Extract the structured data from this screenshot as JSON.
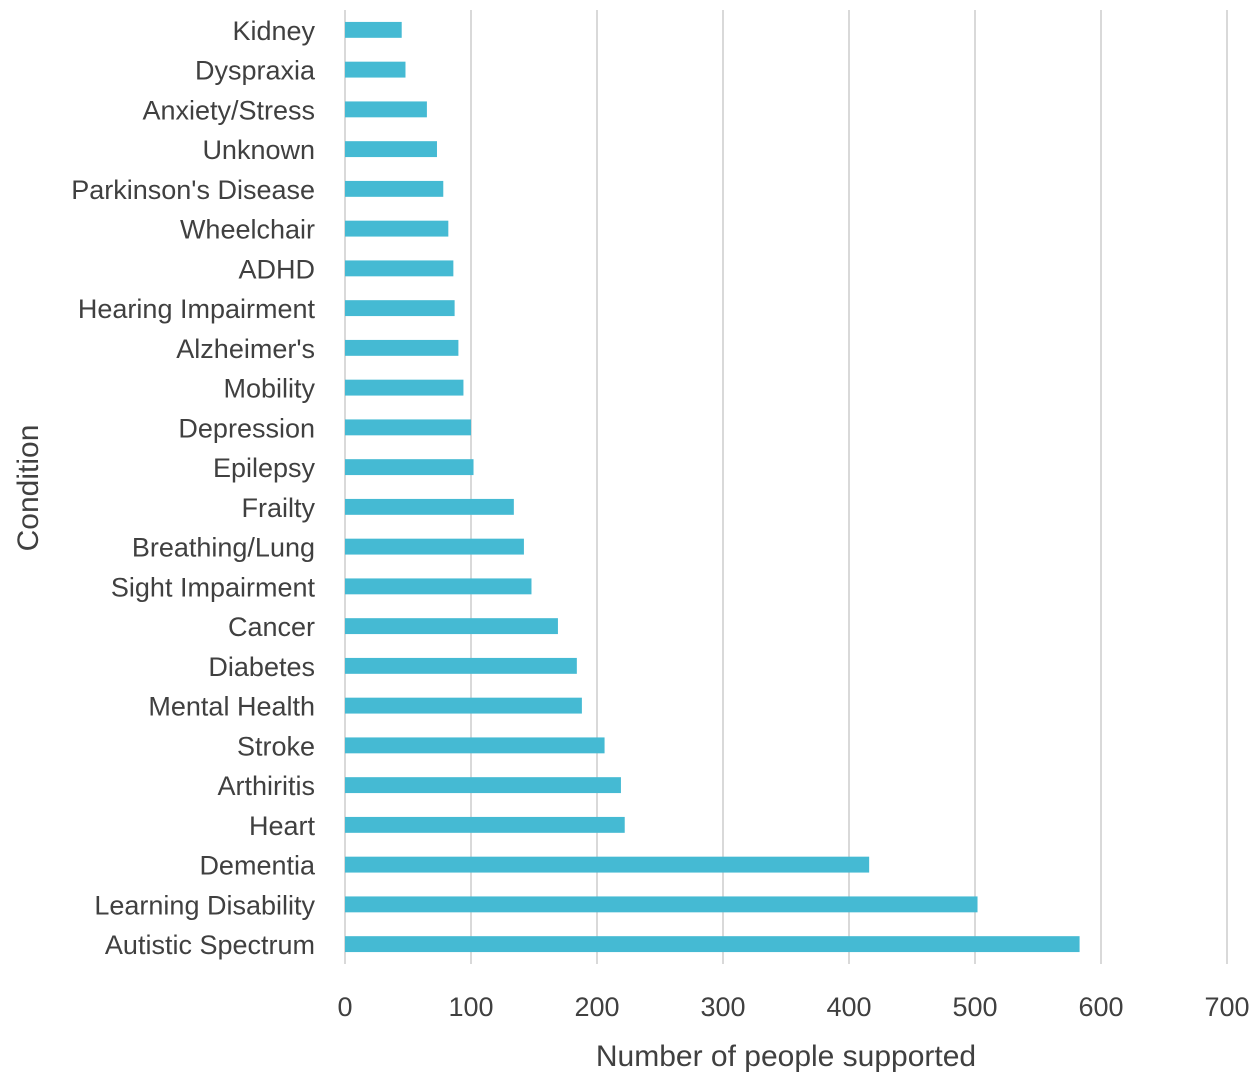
{
  "chart_data": {
    "type": "bar",
    "orientation": "horizontal",
    "title": "",
    "xlabel": "Number of people supported",
    "ylabel": "Condition",
    "xlim": [
      0,
      700
    ],
    "x_ticks": [
      0,
      100,
      200,
      300,
      400,
      500,
      600,
      700
    ],
    "grid": "vertical",
    "legend": "none",
    "bar_color": "#45BAD3",
    "gridline_color": "#D9D9D9",
    "text_color": "#404040",
    "categories": [
      "Kidney",
      "Dyspraxia",
      "Anxiety/Stress",
      "Unknown",
      "Parkinson's Disease",
      "Wheelchair",
      "ADHD",
      "Hearing Impairment",
      "Alzheimer's",
      "Mobility",
      "Depression",
      "Epilepsy",
      "Frailty",
      "Breathing/Lung",
      "Sight Impairment",
      "Cancer",
      "Diabetes",
      "Mental Health",
      "Stroke",
      "Arthiritis",
      "Heart",
      "Dementia",
      "Learning Disability",
      "Autistic Spectrum"
    ],
    "values": [
      45,
      48,
      65,
      73,
      78,
      82,
      86,
      87,
      90,
      94,
      100,
      102,
      134,
      142,
      148,
      169,
      184,
      188,
      206,
      219,
      222,
      416,
      502,
      583
    ]
  }
}
